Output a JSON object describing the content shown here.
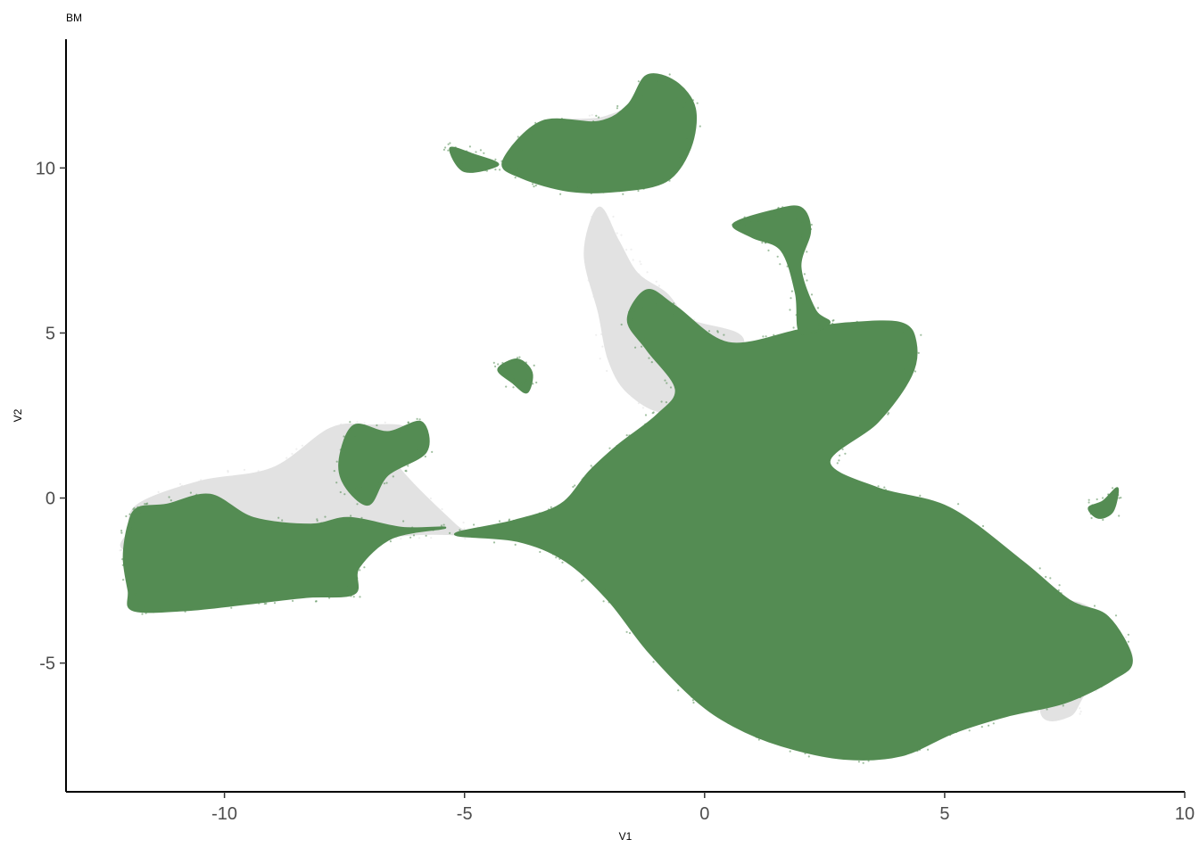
{
  "chart_data": {
    "type": "scatter",
    "title": "BM",
    "xlabel": "V1",
    "ylabel": "V2",
    "xlim": [
      -13.3,
      10
    ],
    "ylim": [
      -8.9,
      13.9
    ],
    "x_ticks": [
      -10,
      -5,
      0,
      5,
      10
    ],
    "y_ticks": [
      -5,
      0,
      5,
      10
    ],
    "x_tick_labels": [
      "-10",
      "-5",
      "0",
      "5",
      "10"
    ],
    "y_tick_labels": [
      "-5",
      "0",
      "5",
      "10"
    ],
    "grid": false,
    "legend": "none",
    "colors": {
      "highlight": "#548c53",
      "background": "#e2e2e2",
      "axis": "#000000"
    },
    "series": [
      {
        "role": "background",
        "color": "#e2e2e2",
        "regions": [
          {
            "label": "left-cluster-gray",
            "outline": [
              [
                -12,
                -1
              ],
              [
                -11.8,
                -0.2
              ],
              [
                -10.5,
                0.5
              ],
              [
                -9,
                0.9
              ],
              [
                -7.8,
                2.1
              ],
              [
                -7,
                2.2
              ],
              [
                -6.2,
                2.1
              ],
              [
                -6.5,
                1.2
              ],
              [
                -5.2,
                -0.8
              ],
              [
                -4.8,
                -1.1
              ],
              [
                -6,
                -1.1
              ],
              [
                -8,
                -1.4
              ],
              [
                -10,
                -1.8
              ],
              [
                -12,
                -1.6
              ]
            ]
          },
          {
            "label": "bridge-gray",
            "outline": [
              [
                -2.2,
                8.8
              ],
              [
                -1.8,
                7.8
              ],
              [
                -1.4,
                6.8
              ],
              [
                -0.8,
                6.2
              ],
              [
                -0.3,
                5.4
              ],
              [
                0.8,
                4.8
              ],
              [
                0.2,
                3.2
              ],
              [
                -0.8,
                2.6
              ],
              [
                -1.6,
                3.2
              ],
              [
                -2.0,
                4.2
              ],
              [
                -2.2,
                5.6
              ],
              [
                -2.5,
                7.4
              ]
            ]
          },
          {
            "label": "top-cluster-gray",
            "outline": [
              [
                -3.2,
                11.4
              ],
              [
                -2.2,
                11.5
              ],
              [
                -1.5,
                11.8
              ],
              [
                -1.4,
                11.3
              ],
              [
                -2.2,
                10.6
              ],
              [
                -3.2,
                10.9
              ]
            ]
          },
          {
            "label": "right-fringe-gray",
            "outline": [
              [
                7.4,
                -3.4
              ],
              [
                8.2,
                -3.5
              ],
              [
                8.9,
                -4.9
              ],
              [
                8.0,
                -5.8
              ],
              [
                7.6,
                -6.6
              ],
              [
                7.0,
                -6.4
              ]
            ]
          }
        ]
      },
      {
        "role": "highlight",
        "color": "#548c53",
        "regions": [
          {
            "label": "main-cluster",
            "outline": [
              [
                -5.2,
                -1.1
              ],
              [
                -4,
                -0.7
              ],
              [
                -3,
                -0.2
              ],
              [
                -2.4,
                0.8
              ],
              [
                -1.8,
                1.6
              ],
              [
                -1,
                2.5
              ],
              [
                -0.6,
                3.3
              ],
              [
                -1.2,
                4.5
              ],
              [
                -1.6,
                5.4
              ],
              [
                -1.2,
                6.3
              ],
              [
                -0.6,
                5.8
              ],
              [
                0.5,
                4.7
              ],
              [
                2,
                5.1
              ],
              [
                3,
                5.3
              ],
              [
                4.1,
                5.3
              ],
              [
                4.4,
                4.7
              ],
              [
                4.3,
                3.7
              ],
              [
                3.6,
                2.3
              ],
              [
                2.6,
                1.1
              ],
              [
                3.6,
                0.3
              ],
              [
                5.1,
                -0.3
              ],
              [
                6.6,
                -1.9
              ],
              [
                7.6,
                -3.1
              ],
              [
                8.4,
                -3.6
              ],
              [
                8.9,
                -4.9
              ],
              [
                8.5,
                -5.5
              ],
              [
                7.5,
                -6.2
              ],
              [
                6.3,
                -6.6
              ],
              [
                5.2,
                -7.1
              ],
              [
                4.1,
                -7.8
              ],
              [
                2.9,
                -7.9
              ],
              [
                1.6,
                -7.5
              ],
              [
                0.6,
                -6.9
              ],
              [
                -0.2,
                -6.1
              ],
              [
                -1.2,
                -4.6
              ],
              [
                -2.0,
                -3.1
              ],
              [
                -2.9,
                -1.9
              ],
              [
                -3.9,
                -1.3
              ]
            ]
          },
          {
            "label": "left-cluster",
            "outline": [
              [
                -11.8,
                -0.3
              ],
              [
                -11.2,
                -0.2
              ],
              [
                -10.3,
                0.1
              ],
              [
                -9.4,
                -0.6
              ],
              [
                -8.2,
                -0.8
              ],
              [
                -7.4,
                -0.6
              ],
              [
                -6.3,
                -0.9
              ],
              [
                -5.4,
                -0.9
              ],
              [
                -6.5,
                -1.2
              ],
              [
                -7.2,
                -2.1
              ],
              [
                -7.3,
                -2.9
              ],
              [
                -8.3,
                -3.0
              ],
              [
                -9.5,
                -3.2
              ],
              [
                -10.8,
                -3.4
              ],
              [
                -11.9,
                -3.4
              ],
              [
                -12.0,
                -2.8
              ],
              [
                -12.1,
                -1.8
              ],
              [
                -12.0,
                -0.8
              ]
            ]
          },
          {
            "label": "left-cluster-upper",
            "outline": [
              [
                -7.3,
                2.2
              ],
              [
                -6.6,
                2.0
              ],
              [
                -5.9,
                2.3
              ],
              [
                -5.8,
                1.4
              ],
              [
                -6.6,
                0.7
              ],
              [
                -7.0,
                -0.2
              ],
              [
                -7.5,
                0.4
              ],
              [
                -7.6,
                1.2
              ]
            ]
          },
          {
            "label": "top-cluster",
            "outline": [
              [
                -4.2,
                10.2
              ],
              [
                -3.4,
                11.4
              ],
              [
                -2.2,
                11.4
              ],
              [
                -1.6,
                11.9
              ],
              [
                -1.2,
                12.8
              ],
              [
                -0.6,
                12.6
              ],
              [
                -0.2,
                11.8
              ],
              [
                -0.3,
                10.6
              ],
              [
                -0.8,
                9.6
              ],
              [
                -1.8,
                9.3
              ],
              [
                -2.8,
                9.3
              ],
              [
                -3.8,
                9.7
              ]
            ]
          },
          {
            "label": "top-cluster-tail",
            "outline": [
              [
                -5.3,
                10.6
              ],
              [
                -4.8,
                10.4
              ],
              [
                -4.3,
                10.1
              ],
              [
                -5.0,
                9.9
              ]
            ]
          },
          {
            "label": "upper-right-arm",
            "outline": [
              [
                0.6,
                8.3
              ],
              [
                1.4,
                8.7
              ],
              [
                2.0,
                8.8
              ],
              [
                2.2,
                8.1
              ],
              [
                2.0,
                7.0
              ],
              [
                2.3,
                5.7
              ],
              [
                2.6,
                5.3
              ],
              [
                2.0,
                5.0
              ],
              [
                1.9,
                6.2
              ],
              [
                1.6,
                7.5
              ],
              [
                1.0,
                7.9
              ]
            ]
          },
          {
            "label": "small-cluster-mid",
            "outline": [
              [
                -4.3,
                3.9
              ],
              [
                -3.9,
                4.2
              ],
              [
                -3.6,
                3.8
              ],
              [
                -3.7,
                3.2
              ],
              [
                -4.0,
                3.5
              ]
            ]
          },
          {
            "label": "right-islet",
            "outline": [
              [
                8.0,
                -0.3
              ],
              [
                8.3,
                -0.1
              ],
              [
                8.6,
                0.3
              ],
              [
                8.5,
                -0.4
              ],
              [
                8.2,
                -0.6
              ]
            ]
          }
        ]
      }
    ]
  }
}
